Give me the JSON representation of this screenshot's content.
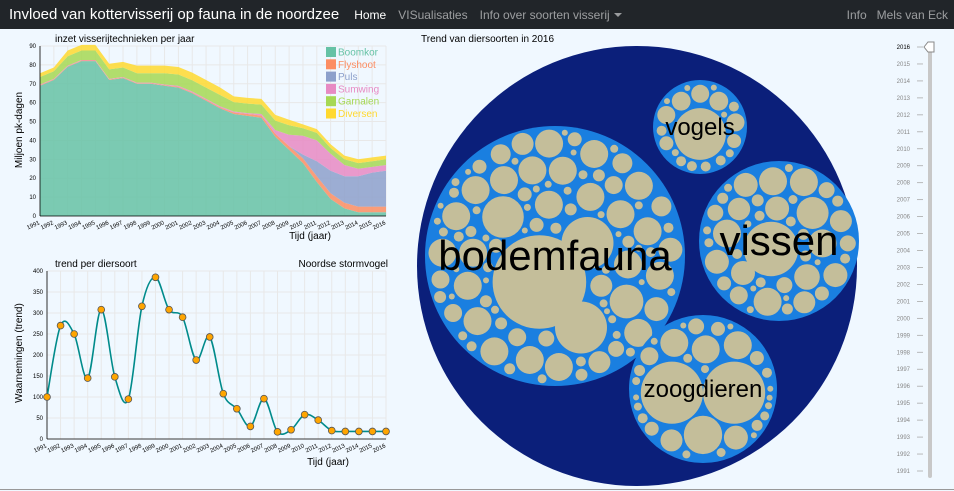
{
  "navbar": {
    "brand": "Invloed van kottervisserij op fauna in de noordzee",
    "home": "Home",
    "visualisaties": "VISualisaties",
    "info_soorten": "Info over soorten visserij",
    "info": "Info",
    "author": "Mels van Eck"
  },
  "area_chart": {
    "chart_data": {
      "type": "area",
      "title": "inzet visserijtechnieken per jaar",
      "xlabel": "Tijd (jaar)",
      "ylabel": "Miljoen pk-dagen",
      "ylim": [
        0,
        90
      ],
      "yticks": [
        "0",
        "10",
        "20",
        "30",
        "40",
        "50",
        "60",
        "70",
        "80",
        "90"
      ],
      "x": [
        "1991",
        "1992",
        "1993",
        "1994",
        "1995",
        "1996",
        "1997",
        "1998",
        "1999",
        "2000",
        "2001",
        "2002",
        "2003",
        "2004",
        "2005",
        "2006",
        "2007",
        "2008",
        "2009",
        "2010",
        "2011",
        "2012",
        "2013",
        "2014",
        "2015",
        "2016"
      ],
      "legend_position": "top-right",
      "series": [
        {
          "name": "Boomkor",
          "color": "#66c2a5",
          "values": [
            69,
            72,
            79,
            82,
            82,
            72,
            73,
            70,
            70,
            69,
            68,
            65,
            61,
            57,
            54,
            53,
            52,
            42,
            35,
            28,
            18,
            9,
            4,
            2,
            2,
            2
          ]
        },
        {
          "name": "Flyshoot",
          "color": "#fc8d62",
          "values": [
            0.3,
            0.3,
            0.3,
            0.3,
            0.3,
            0.3,
            0.3,
            0.3,
            0.3,
            0.3,
            0.4,
            0.4,
            0.5,
            0.6,
            0.8,
            1,
            1.2,
            1.5,
            2,
            2.5,
            3,
            3,
            3,
            3,
            3,
            3
          ]
        },
        {
          "name": "Puls",
          "color": "#8da0cb",
          "values": [
            0,
            0,
            0,
            0,
            0,
            0,
            0,
            0,
            0,
            0,
            0,
            0,
            0,
            0,
            0,
            0,
            0,
            0,
            0,
            2,
            8,
            12,
            14,
            16,
            18,
            19
          ]
        },
        {
          "name": "Sumwing",
          "color": "#e78ac3",
          "values": [
            0.3,
            0.3,
            0.3,
            0.3,
            0.3,
            0.3,
            0.3,
            0.3,
            0.3,
            0.3,
            0.5,
            0.5,
            0.5,
            0.5,
            0.5,
            0.5,
            0.8,
            2,
            6,
            10,
            11,
            9,
            6,
            4,
            3,
            3
          ]
        },
        {
          "name": "Garnalen",
          "color": "#a6d854",
          "values": [
            4,
            4,
            5,
            5,
            5,
            5,
            5,
            5,
            5,
            6,
            6,
            6,
            6,
            6,
            5,
            5,
            5,
            5,
            5,
            4,
            4,
            3,
            3,
            3,
            3,
            3
          ]
        },
        {
          "name": "Diversen",
          "color": "#ffd92f",
          "values": [
            2,
            2,
            3,
            3,
            3,
            3,
            3,
            4,
            4,
            4,
            4,
            4,
            4,
            4,
            3,
            3,
            3,
            3,
            3,
            2,
            2,
            2,
            2,
            2,
            2,
            2
          ]
        }
      ]
    }
  },
  "line_chart": {
    "chart_data": {
      "type": "line",
      "title": "trend per diersoort",
      "subtitle": "Noordse stormvogel",
      "xlabel": "Tijd (jaar)",
      "ylabel": "Waarnemingen (trend)",
      "ylim": [
        0,
        400
      ],
      "yticks": [
        "0",
        "50",
        "100",
        "150",
        "200",
        "250",
        "300",
        "350",
        "400"
      ],
      "x": [
        "1991",
        "1992",
        "1993",
        "1994",
        "1995",
        "1996",
        "1997",
        "1998",
        "1999",
        "2000",
        "2001",
        "2002",
        "2003",
        "2004",
        "2005",
        "2006",
        "2007",
        "2008",
        "2009",
        "2010",
        "2011",
        "2012",
        "2013",
        "2014",
        "2015",
        "2016"
      ],
      "series": [
        {
          "color": "#008b8b",
          "values": [
            100,
            270,
            250,
            145,
            308,
            148,
            95,
            316,
            385,
            308,
            290,
            188,
            243,
            108,
            72,
            30,
            96,
            17,
            22,
            58,
            45,
            20,
            18,
            18,
            18,
            18
          ]
        }
      ]
    }
  },
  "bubble_chart": {
    "title": "Trend van diersoorten in 2016",
    "groups": [
      {
        "name": "bodemfauna"
      },
      {
        "name": "vissen"
      },
      {
        "name": "vogels"
      },
      {
        "name": "zoogdieren"
      }
    ]
  },
  "year_slider": {
    "years": [
      "2016",
      "2015",
      "2014",
      "2013",
      "2012",
      "2011",
      "2010",
      "2009",
      "2008",
      "2007",
      "2006",
      "2005",
      "2004",
      "2003",
      "2002",
      "2001",
      "2000",
      "1999",
      "1998",
      "1997",
      "1996",
      "1995",
      "1994",
      "1993",
      "1992",
      "1991"
    ],
    "selected": 2016
  }
}
